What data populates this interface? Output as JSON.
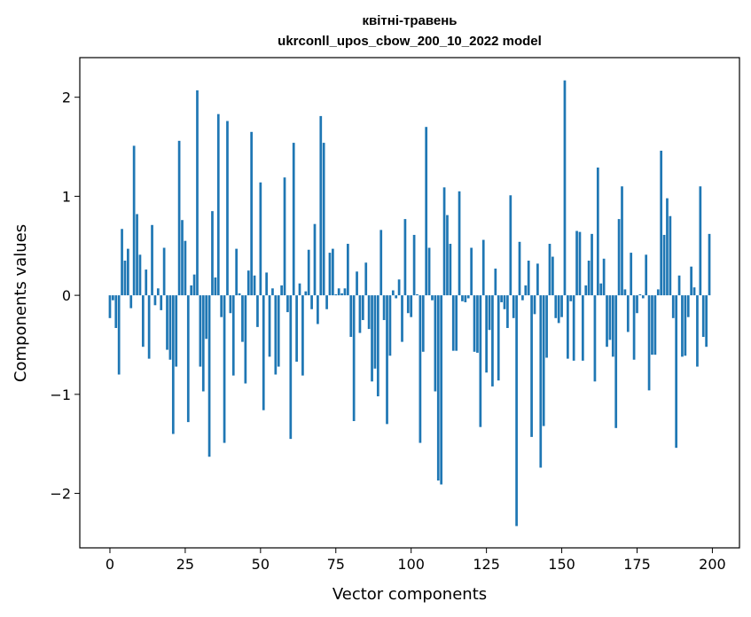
{
  "chart_data": {
    "type": "bar",
    "title": "квітні-травень",
    "subtitle": "ukrconll_upos_cbow_200_10_2022 model",
    "xlabel": "Vector components",
    "ylabel": "Components values",
    "xlim": [
      -10,
      209
    ],
    "ylim": [
      -2.55,
      2.4
    ],
    "xticks": [
      0,
      25,
      50,
      75,
      100,
      125,
      150,
      175,
      200
    ],
    "xtick_labels": [
      "0",
      "25",
      "50",
      "75",
      "100",
      "125",
      "150",
      "175",
      "200"
    ],
    "yticks": [
      -2,
      -1,
      0,
      1,
      2
    ],
    "ytick_labels": [
      "−2",
      "−1",
      "0",
      "1",
      "2"
    ],
    "color": "#1f77b4",
    "grid": false,
    "x": [
      0,
      1,
      2,
      3,
      4,
      5,
      6,
      7,
      8,
      9,
      10,
      11,
      12,
      13,
      14,
      15,
      16,
      17,
      18,
      19,
      20,
      21,
      22,
      23,
      24,
      25,
      26,
      27,
      28,
      29,
      30,
      31,
      32,
      33,
      34,
      35,
      36,
      37,
      38,
      39,
      40,
      41,
      42,
      43,
      44,
      45,
      46,
      47,
      48,
      49,
      50,
      51,
      52,
      53,
      54,
      55,
      56,
      57,
      58,
      59,
      60,
      61,
      62,
      63,
      64,
      65,
      66,
      67,
      68,
      69,
      70,
      71,
      72,
      73,
      74,
      75,
      76,
      77,
      78,
      79,
      80,
      81,
      82,
      83,
      84,
      85,
      86,
      87,
      88,
      89,
      90,
      91,
      92,
      93,
      94,
      95,
      96,
      97,
      98,
      99,
      100,
      101,
      102,
      103,
      104,
      105,
      106,
      107,
      108,
      109,
      110,
      111,
      112,
      113,
      114,
      115,
      116,
      117,
      118,
      119,
      120,
      121,
      122,
      123,
      124,
      125,
      126,
      127,
      128,
      129,
      130,
      131,
      132,
      133,
      134,
      135,
      136,
      137,
      138,
      139,
      140,
      141,
      142,
      143,
      144,
      145,
      146,
      147,
      148,
      149,
      150,
      151,
      152,
      153,
      154,
      155,
      156,
      157,
      158,
      159,
      160,
      161,
      162,
      163,
      164,
      165,
      166,
      167,
      168,
      169,
      170,
      171,
      172,
      173,
      174,
      175,
      176,
      177,
      178,
      179,
      180,
      181,
      182,
      183,
      184,
      185,
      186,
      187,
      188,
      189,
      190,
      191,
      192,
      193,
      194,
      195,
      196,
      197,
      198,
      199
    ],
    "values": [
      -0.23,
      -0.05,
      -0.33,
      -0.8,
      0.67,
      0.35,
      0.47,
      -0.13,
      1.51,
      0.82,
      0.41,
      -0.52,
      0.26,
      -0.64,
      0.71,
      -0.1,
      0.07,
      -0.15,
      0.48,
      -0.55,
      -0.65,
      -1.4,
      -0.72,
      1.56,
      0.76,
      0.55,
      -1.28,
      0.1,
      0.21,
      2.07,
      -0.72,
      -0.97,
      -0.44,
      -1.63,
      0.85,
      0.18,
      1.83,
      -0.22,
      -1.49,
      1.76,
      -0.18,
      -0.81,
      0.47,
      0.02,
      -0.47,
      -0.89,
      0.25,
      1.65,
      0.2,
      -0.32,
      1.14,
      -1.16,
      0.23,
      -0.62,
      0.07,
      -0.8,
      -0.72,
      0.1,
      1.19,
      -0.17,
      -1.45,
      1.54,
      -0.67,
      0.12,
      -0.81,
      0.04,
      0.46,
      -0.14,
      0.72,
      -0.29,
      1.81,
      1.54,
      -0.14,
      0.43,
      0.47,
      0.01,
      0.07,
      0.02,
      0.07,
      0.52,
      -0.42,
      -1.27,
      0.24,
      -0.38,
      -0.25,
      0.33,
      -0.34,
      -0.87,
      -0.74,
      -1.02,
      0.66,
      -0.25,
      -1.3,
      -0.61,
      0.05,
      -0.03,
      0.16,
      -0.47,
      0.77,
      -0.18,
      -0.22,
      0.61,
      0.01,
      -1.49,
      -0.57,
      1.7,
      0.48,
      -0.05,
      -0.97,
      -1.87,
      -1.91,
      1.09,
      0.81,
      0.52,
      -0.56,
      -0.56,
      1.05,
      -0.06,
      -0.07,
      -0.03,
      0.48,
      -0.57,
      -0.58,
      -1.33,
      0.56,
      -0.78,
      -0.35,
      -0.92,
      0.27,
      -0.86,
      -0.07,
      -0.14,
      -0.33,
      1.01,
      -0.23,
      -2.33,
      0.54,
      -0.05,
      0.1,
      0.35,
      -1.43,
      -0.19,
      0.32,
      -1.74,
      -1.32,
      -0.63,
      0.52,
      0.39,
      -0.23,
      -0.28,
      -0.22,
      2.17,
      -0.64,
      -0.06,
      -0.66,
      0.65,
      0.64,
      -0.66,
      0.1,
      0.35,
      0.62,
      -0.87,
      1.29,
      0.12,
      0.37,
      -0.52,
      -0.45,
      -0.62,
      -1.34,
      0.77,
      1.1,
      0.06,
      -0.37,
      0.43,
      -0.65,
      -0.18,
      0.01,
      -0.03,
      0.41,
      -0.96,
      -0.6,
      -0.6,
      0.06,
      1.46,
      0.61,
      0.98,
      0.8,
      -0.23,
      -1.54,
      0.2,
      -0.62,
      -0.61,
      -0.22,
      0.29,
      0.08,
      -0.72,
      1.1,
      -0.42,
      -0.52,
      0.62
    ]
  }
}
